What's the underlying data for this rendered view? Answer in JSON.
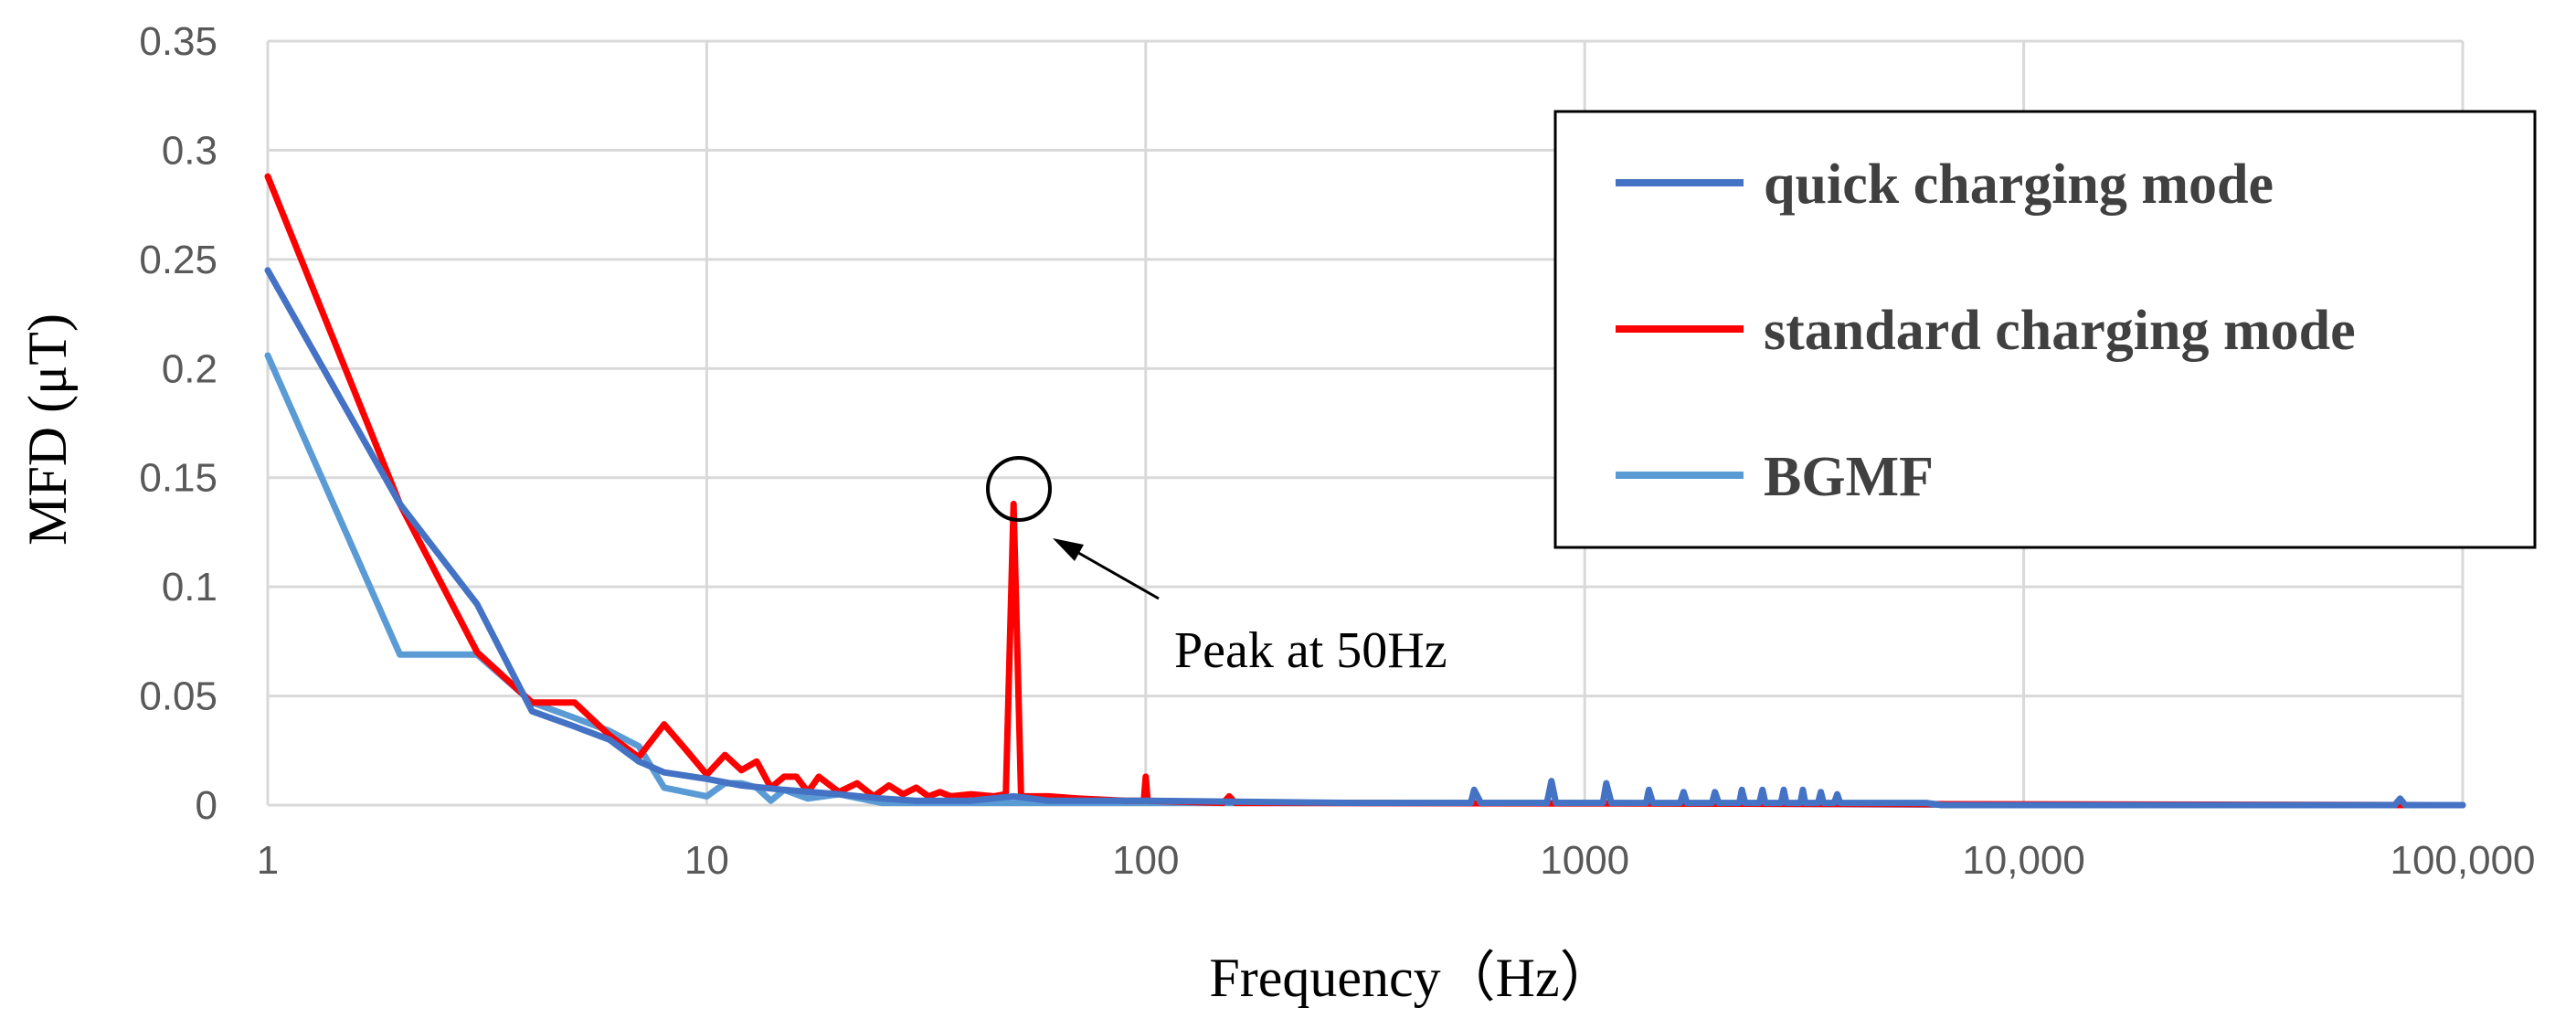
{
  "chart_data": {
    "type": "line",
    "x_scale": "log",
    "xlabel": "Frequency（Hz）",
    "ylabel": "MFD (μT)",
    "xlim": [
      1,
      100000
    ],
    "ylim": [
      0,
      0.35
    ],
    "x_ticks": [
      {
        "value": 1,
        "label": "1"
      },
      {
        "value": 10,
        "label": "10"
      },
      {
        "value": 100,
        "label": "100"
      },
      {
        "value": 1000,
        "label": "1000"
      },
      {
        "value": 10000,
        "label": "10,000"
      },
      {
        "value": 100000,
        "label": "100,000"
      }
    ],
    "y_ticks": [
      {
        "value": 0,
        "label": "0"
      },
      {
        "value": 0.05,
        "label": "0.05"
      },
      {
        "value": 0.1,
        "label": "0.1"
      },
      {
        "value": 0.15,
        "label": "0.15"
      },
      {
        "value": 0.2,
        "label": "0.2"
      },
      {
        "value": 0.25,
        "label": "0.25"
      },
      {
        "value": 0.3,
        "label": "0.3"
      },
      {
        "value": 0.35,
        "label": "0.35"
      }
    ],
    "grid": true,
    "legend_position": "top-right",
    "series": [
      {
        "name": "quick charging mode",
        "color": "#4472C4",
        "points": [
          [
            1,
            0.245
          ],
          [
            2,
            0.138
          ],
          [
            3,
            0.092
          ],
          [
            4,
            0.043
          ],
          [
            5,
            0.036
          ],
          [
            6,
            0.03
          ],
          [
            7,
            0.02
          ],
          [
            8,
            0.015
          ],
          [
            10,
            0.012
          ],
          [
            12,
            0.009
          ],
          [
            15,
            0.007
          ],
          [
            20,
            0.005
          ],
          [
            25,
            0.003
          ],
          [
            30,
            0.002
          ],
          [
            40,
            0.002
          ],
          [
            50,
            0.004
          ],
          [
            60,
            0.002
          ],
          [
            100,
            0.002
          ],
          [
            300,
            0.001
          ],
          [
            550,
            0.001
          ],
          [
            560,
            0.007
          ],
          [
            580,
            0.001
          ],
          [
            820,
            0.001
          ],
          [
            840,
            0.011
          ],
          [
            860,
            0.001
          ],
          [
            1100,
            0.001
          ],
          [
            1120,
            0.01
          ],
          [
            1150,
            0.001
          ],
          [
            1380,
            0.001
          ],
          [
            1400,
            0.007
          ],
          [
            1430,
            0.001
          ],
          [
            1650,
            0.001
          ],
          [
            1680,
            0.006
          ],
          [
            1710,
            0.001
          ],
          [
            1950,
            0.001
          ],
          [
            1980,
            0.006
          ],
          [
            2020,
            0.001
          ],
          [
            2250,
            0.001
          ],
          [
            2280,
            0.007
          ],
          [
            2320,
            0.001
          ],
          [
            2500,
            0.001
          ],
          [
            2540,
            0.007
          ],
          [
            2580,
            0.001
          ],
          [
            2800,
            0.001
          ],
          [
            2840,
            0.007
          ],
          [
            2880,
            0.001
          ],
          [
            3100,
            0.001
          ],
          [
            3140,
            0.007
          ],
          [
            3180,
            0.001
          ],
          [
            3400,
            0.001
          ],
          [
            3450,
            0.006
          ],
          [
            3500,
            0.001
          ],
          [
            3700,
            0.001
          ],
          [
            3760,
            0.005
          ],
          [
            3820,
            0.001
          ],
          [
            6000,
            0.001
          ],
          [
            6500,
            0
          ],
          [
            70000,
            0
          ],
          [
            72000,
            0.003
          ],
          [
            74000,
            0
          ],
          [
            100000,
            0
          ]
        ]
      },
      {
        "name": "standard charging mode",
        "color": "#FF0000",
        "points": [
          [
            1,
            0.288
          ],
          [
            2,
            0.138
          ],
          [
            3,
            0.07
          ],
          [
            4,
            0.047
          ],
          [
            5,
            0.047
          ],
          [
            6,
            0.032
          ],
          [
            7,
            0.022
          ],
          [
            8,
            0.037
          ],
          [
            9,
            0.025
          ],
          [
            10,
            0.014
          ],
          [
            11,
            0.023
          ],
          [
            12,
            0.016
          ],
          [
            13,
            0.02
          ],
          [
            14,
            0.008
          ],
          [
            15,
            0.013
          ],
          [
            16,
            0.013
          ],
          [
            17,
            0.006
          ],
          [
            18,
            0.013
          ],
          [
            20,
            0.006
          ],
          [
            22,
            0.01
          ],
          [
            24,
            0.004
          ],
          [
            26,
            0.009
          ],
          [
            28,
            0.005
          ],
          [
            30,
            0.008
          ],
          [
            32,
            0.004
          ],
          [
            34,
            0.006
          ],
          [
            36,
            0.004
          ],
          [
            40,
            0.005
          ],
          [
            45,
            0.004
          ],
          [
            48,
            0.005
          ],
          [
            50,
            0.138
          ],
          [
            52,
            0.004
          ],
          [
            60,
            0.004
          ],
          [
            70,
            0.003
          ],
          [
            90,
            0.002
          ],
          [
            99,
            0.002
          ],
          [
            100,
            0.013
          ],
          [
            101,
            0.002
          ],
          [
            150,
            0.001
          ],
          [
            155,
            0.004
          ],
          [
            160,
            0.001
          ],
          [
            200,
            0.001
          ],
          [
            100000,
            0
          ]
        ]
      },
      {
        "name": "BGMF",
        "color": "#5B9BD5",
        "points": [
          [
            1,
            0.206
          ],
          [
            2,
            0.069
          ],
          [
            3,
            0.069
          ],
          [
            4,
            0.047
          ],
          [
            5,
            0.04
          ],
          [
            6,
            0.034
          ],
          [
            7,
            0.027
          ],
          [
            8,
            0.008
          ],
          [
            10,
            0.004
          ],
          [
            11,
            0.01
          ],
          [
            12,
            0.01
          ],
          [
            13,
            0.008
          ],
          [
            14,
            0.002
          ],
          [
            15,
            0.007
          ],
          [
            17,
            0.003
          ],
          [
            20,
            0.005
          ],
          [
            25,
            0.001
          ],
          [
            30,
            0.001
          ],
          [
            40,
            0.001
          ],
          [
            50,
            0.001
          ],
          [
            100,
            0.001
          ],
          [
            1000,
            0.001
          ],
          [
            10000,
            0
          ],
          [
            100000,
            0
          ]
        ]
      }
    ],
    "annotations": [
      {
        "text": "Peak at 50Hz",
        "x": 50,
        "y": 0.14
      }
    ]
  }
}
